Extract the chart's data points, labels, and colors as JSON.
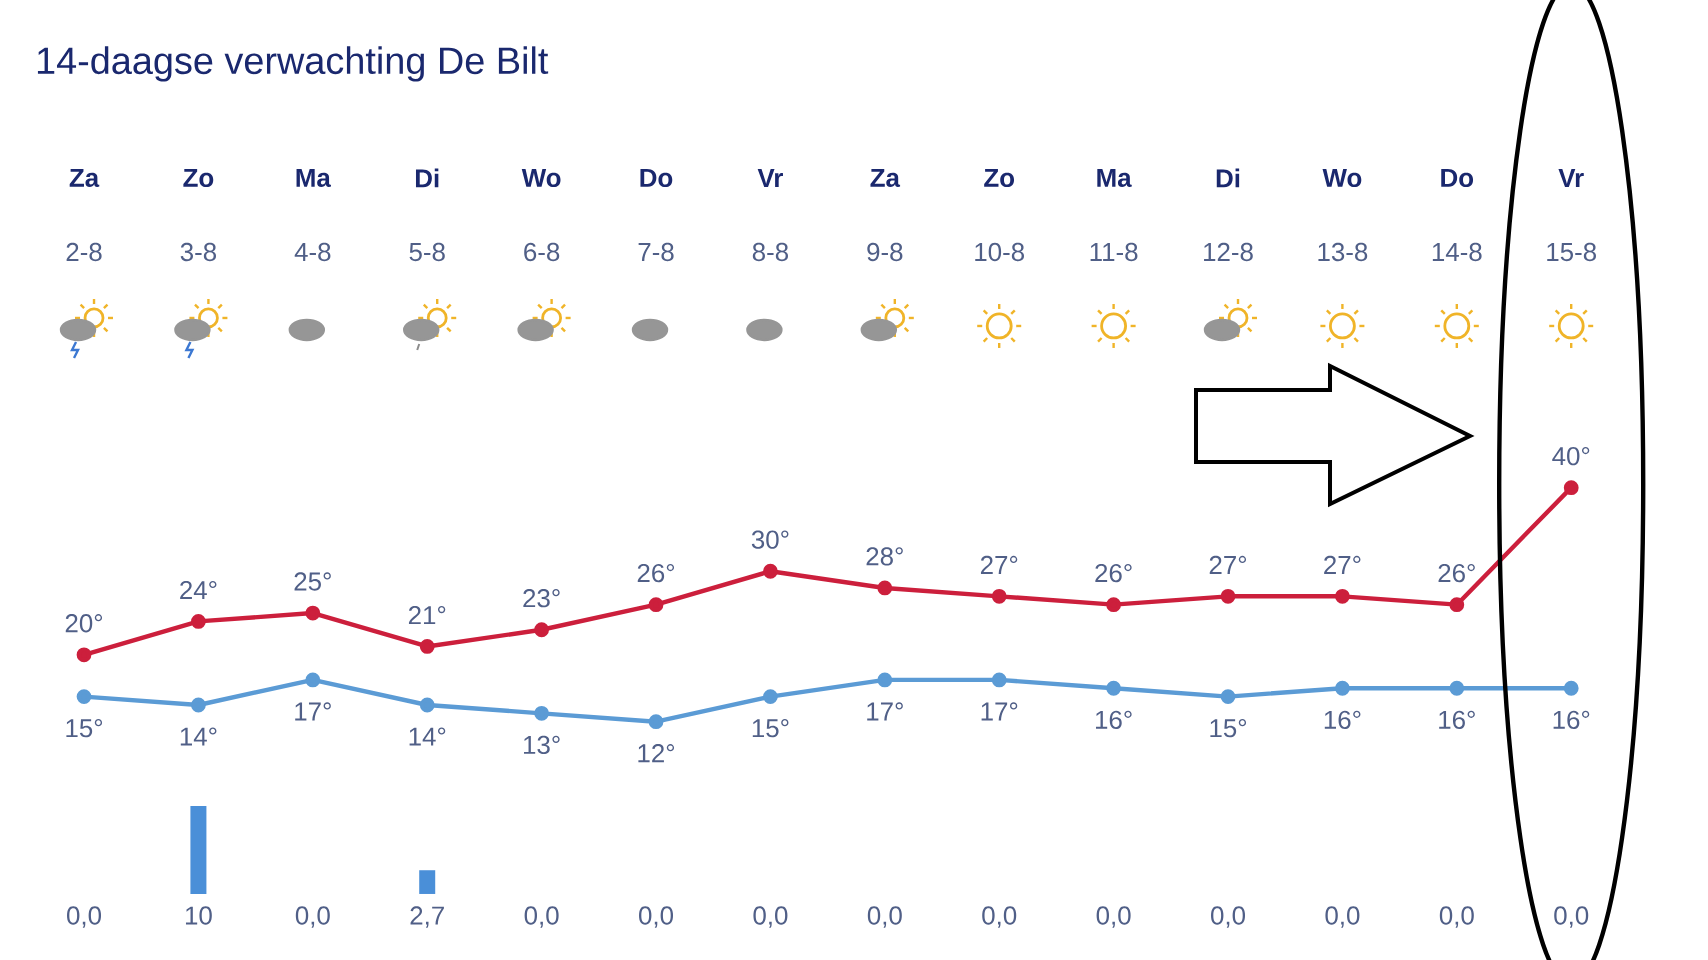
{
  "chart_data": [
    {
      "type": "line",
      "title": "14-daagse verwachting De Bilt",
      "categories": [
        "2-8",
        "3-8",
        "4-8",
        "5-8",
        "6-8",
        "7-8",
        "8-8",
        "9-8",
        "10-8",
        "11-8",
        "12-8",
        "13-8",
        "14-8",
        "15-8"
      ],
      "annotations": [
        "Za",
        "Zo",
        "Ma",
        "Di",
        "Wo",
        "Do",
        "Vr",
        "Za",
        "Zo",
        "Ma",
        "Di",
        "Wo",
        "Do",
        "Vr"
      ],
      "series": [
        {
          "color": "#cc1f3c",
          "values": [
            20,
            24,
            25,
            21,
            23,
            26,
            30,
            28,
            27,
            26,
            27,
            27,
            26,
            40
          ],
          "value_labels": [
            "20°",
            "24°",
            "25°",
            "21°",
            "23°",
            "26°",
            "30°",
            "28°",
            "27°",
            "26°",
            "27°",
            "27°",
            "26°",
            "40°"
          ]
        },
        {
          "color": "#5b9bd5",
          "values": [
            15,
            14,
            17,
            14,
            13,
            12,
            15,
            17,
            17,
            16,
            15,
            16,
            16,
            16
          ],
          "value_labels": [
            "15°",
            "14°",
            "17°",
            "14°",
            "13°",
            "12°",
            "15°",
            "17°",
            "17°",
            "16°",
            "15°",
            "16°",
            "16°",
            "16°"
          ]
        }
      ],
      "tick_labels": false,
      "marker": "circle",
      "line_style": "solid"
    },
    {
      "type": "bar",
      "categories": [
        null,
        null,
        null,
        null,
        null,
        null,
        null,
        null,
        null,
        null,
        null,
        null,
        null,
        null
      ],
      "series": [
        {
          "color": "#4a8fd8",
          "values": [
            0,
            10,
            0,
            2.7,
            0,
            0,
            0,
            0,
            0,
            0,
            0,
            0,
            0,
            0
          ],
          "value_labels": [
            "0,0",
            "10",
            "0,0",
            "2,7",
            "0,0",
            "0,0",
            "0,0",
            "0,0",
            "0,0",
            "0,0",
            "0,0",
            "0,0",
            "0,0",
            "0,0"
          ]
        }
      ],
      "tick_labels": false
    }
  ]
}
